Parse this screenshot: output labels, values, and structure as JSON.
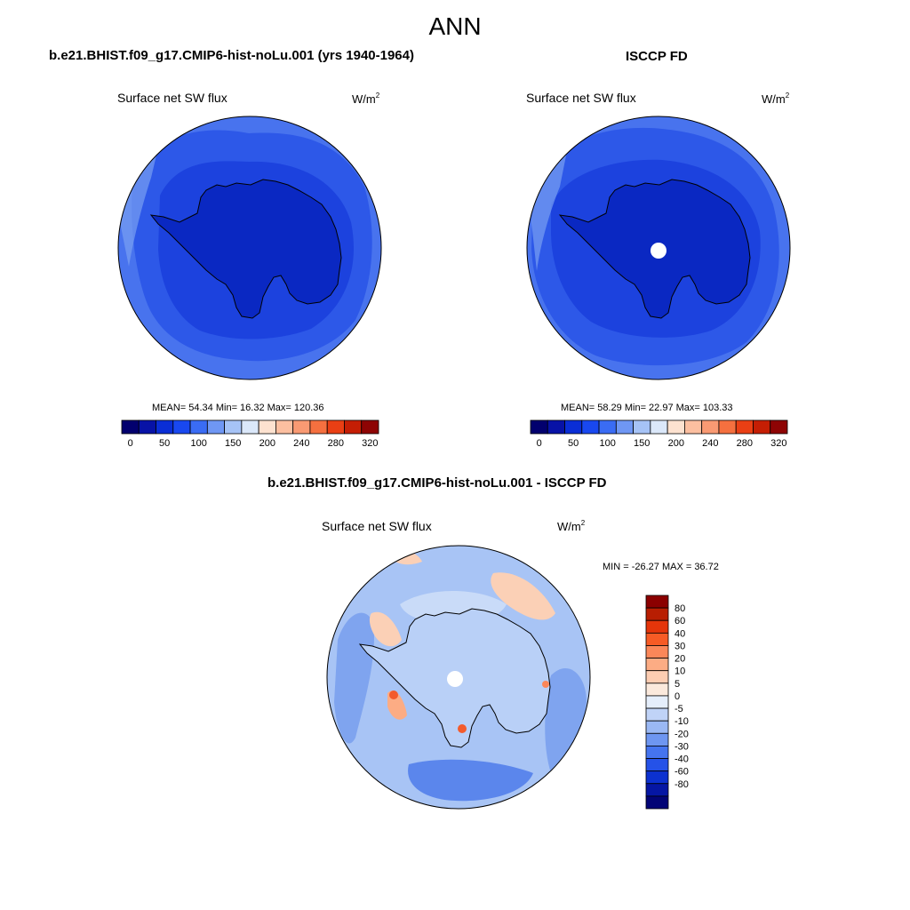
{
  "figure": {
    "title": "ANN"
  },
  "panels": {
    "model": {
      "title": "b.e21.BHIST.f09_g17.CMIP6-hist-noLu.001 (yrs 1940-1964)",
      "variable": "Surface net SW flux",
      "unit": "W/m",
      "unit_superscript": "2",
      "stats": "MEAN=  54.34  Min=  16.32  Max= 120.36"
    },
    "obs": {
      "title": "ISCCP FD",
      "variable": "Surface net SW flux",
      "unit": "W/m",
      "unit_superscript": "2",
      "stats": "MEAN=  58.29  Min=  22.97  Max= 103.33"
    },
    "diff": {
      "title": "b.e21.BHIST.f09_g17.CMIP6-hist-noLu.001 - ISCCP FD",
      "variable": "Surface net SW flux",
      "unit": "W/m",
      "unit_superscript": "2",
      "stats": "MIN = -26.27 MAX =  36.72"
    }
  },
  "colorbars": {
    "abs": {
      "colors": [
        "#02006e",
        "#0712a6",
        "#0a2ed6",
        "#1948f0",
        "#3a6cf4",
        "#6f97f4",
        "#a6c3f6",
        "#dbe8fa",
        "#fde2d0",
        "#fcbfa0",
        "#f99a73",
        "#f5703f",
        "#ea3f14",
        "#c51e04",
        "#8e0404"
      ],
      "tick_labels": [
        "0",
        "50",
        "100",
        "150",
        "200",
        "240",
        "280",
        "320"
      ]
    },
    "diff": {
      "colors_top_to_bottom": [
        "#8b0000",
        "#b81e02",
        "#e5350a",
        "#f75b25",
        "#fb8759",
        "#fcac84",
        "#fdcdb2",
        "#fbe9dc",
        "#e5eefb",
        "#c0d3f7",
        "#9ab8f4",
        "#6e96f1",
        "#4574ef",
        "#2552e8",
        "#0c31d0",
        "#0516a4",
        "#020476"
      ],
      "tick_labels": [
        "80",
        "60",
        "40",
        "30",
        "20",
        "10",
        "5",
        "0",
        "-5",
        "-10",
        "-20",
        "-30",
        "-40",
        "-60",
        "-80"
      ]
    }
  },
  "map_colors": {
    "abs_ocean_far": "#4873ee",
    "abs_mid": "#2d58e8",
    "abs_near": "#1c42de",
    "abs_land": "#0a28c2",
    "abs_light_edge": "#79a0f2",
    "diff_base": "#a8c4f5",
    "diff_light": "#c9dbf8",
    "diff_mid": "#7fa4ef",
    "diff_dark": "#5b86ec",
    "diff_warm": "#fbd0b6",
    "diff_hot": "#f35b2c",
    "coastline": "#000000",
    "missing": "#ffffff"
  }
}
